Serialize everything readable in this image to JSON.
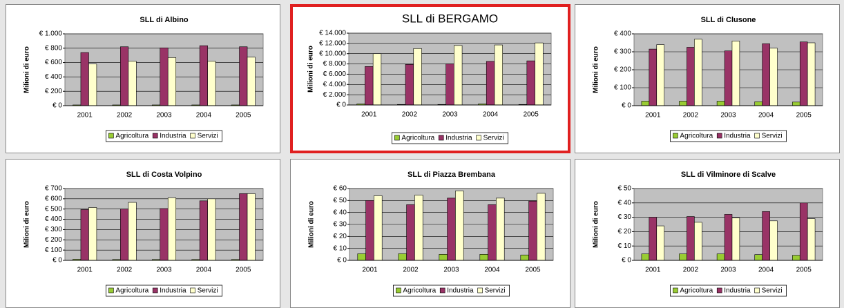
{
  "chart_data": [
    {
      "type": "bar",
      "title": "SLL di Albino",
      "y_label": "Milioni di euro",
      "categories": [
        "2001",
        "2002",
        "2003",
        "2004",
        "2005"
      ],
      "series": [
        {
          "name": "Agricoltura",
          "color": "#99cc33",
          "values": [
            10,
            10,
            10,
            10,
            10
          ]
        },
        {
          "name": "Industria",
          "color": "#993366",
          "values": [
            740,
            820,
            805,
            835,
            820
          ]
        },
        {
          "name": "Servizi",
          "color": "#ffffcc",
          "values": [
            580,
            620,
            670,
            620,
            675
          ]
        }
      ],
      "ylim": [
        0,
        1000
      ],
      "yticks": [
        {
          "value": 0,
          "label": "€ 0"
        },
        {
          "value": 200,
          "label": "€ 200"
        },
        {
          "value": 400,
          "label": "€ 400"
        },
        {
          "value": 600,
          "label": "€ 600"
        },
        {
          "value": 800,
          "label": "€ 800"
        },
        {
          "value": 1000,
          "label": "€ 1.000"
        }
      ],
      "grid": true
    },
    {
      "type": "bar",
      "title": "SLL di BERGAMO",
      "title_color": "#e02020",
      "border_color": "#e02020",
      "y_label": "Milioni di euro",
      "categories": [
        "2001",
        "2002",
        "2003",
        "2004",
        "2005"
      ],
      "series": [
        {
          "name": "Agricoltura",
          "color": "#99cc33",
          "values": [
            200,
            100,
            100,
            200,
            100
          ]
        },
        {
          "name": "Industria",
          "color": "#993366",
          "values": [
            7500,
            7900,
            8000,
            8500,
            8600
          ]
        },
        {
          "name": "Servizi",
          "color": "#ffffcc",
          "values": [
            10000,
            11000,
            11600,
            11700,
            12100
          ]
        }
      ],
      "ylim": [
        0,
        14000
      ],
      "yticks": [
        {
          "value": 0,
          "label": "€ 0"
        },
        {
          "value": 2000,
          "label": "€ 2.000"
        },
        {
          "value": 4000,
          "label": "€ 4.000"
        },
        {
          "value": 6000,
          "label": "€ 6.000"
        },
        {
          "value": 8000,
          "label": "€ 8.000"
        },
        {
          "value": 10000,
          "label": "€ 10.000"
        },
        {
          "value": 12000,
          "label": "€ 12.000"
        },
        {
          "value": 14000,
          "label": "€ 14.000"
        }
      ],
      "grid": true
    },
    {
      "type": "bar",
      "title": "SLL di Clusone",
      "y_label": "Milioni di euro",
      "categories": [
        "2001",
        "2002",
        "2003",
        "2004",
        "2005"
      ],
      "series": [
        {
          "name": "Agricoltura",
          "color": "#99cc33",
          "values": [
            25,
            25,
            25,
            22,
            20
          ]
        },
        {
          "name": "Industria",
          "color": "#993366",
          "values": [
            315,
            325,
            305,
            345,
            355
          ]
        },
        {
          "name": "Servizi",
          "color": "#ffffcc",
          "values": [
            340,
            370,
            360,
            320,
            350
          ]
        }
      ],
      "ylim": [
        0,
        400
      ],
      "yticks": [
        {
          "value": 0,
          "label": "€ 0"
        },
        {
          "value": 100,
          "label": "€ 100"
        },
        {
          "value": 200,
          "label": "€ 200"
        },
        {
          "value": 300,
          "label": "€ 300"
        },
        {
          "value": 400,
          "label": "€ 400"
        }
      ],
      "grid": true
    },
    {
      "type": "bar",
      "title": "SLL di Costa Volpino",
      "y_label": "Milioni di euro",
      "categories": [
        "2001",
        "2002",
        "2003",
        "2004",
        "2005"
      ],
      "series": [
        {
          "name": "Agricoltura",
          "color": "#99cc33",
          "values": [
            10,
            8,
            8,
            8,
            8
          ]
        },
        {
          "name": "Industria",
          "color": "#993366",
          "values": [
            495,
            500,
            505,
            580,
            650
          ]
        },
        {
          "name": "Servizi",
          "color": "#ffffcc",
          "values": [
            515,
            565,
            610,
            600,
            650
          ]
        }
      ],
      "ylim": [
        0,
        700
      ],
      "yticks": [
        {
          "value": 0,
          "label": "€ 0"
        },
        {
          "value": 100,
          "label": "€ 100"
        },
        {
          "value": 200,
          "label": "€ 200"
        },
        {
          "value": 300,
          "label": "€ 300"
        },
        {
          "value": 400,
          "label": "€ 400"
        },
        {
          "value": 500,
          "label": "€ 500"
        },
        {
          "value": 600,
          "label": "€ 600"
        },
        {
          "value": 700,
          "label": "€ 700"
        }
      ],
      "grid": true
    },
    {
      "type": "bar",
      "title": "SLL di Piazza Brembana",
      "y_label": "Milioni di euro",
      "categories": [
        "2001",
        "2002",
        "2003",
        "2004",
        "2005"
      ],
      "series": [
        {
          "name": "Agricoltura",
          "color": "#99cc33",
          "values": [
            5.5,
            5.5,
            5,
            5,
            4.5
          ]
        },
        {
          "name": "Industria",
          "color": "#993366",
          "values": [
            50,
            46.5,
            52,
            46.5,
            49.5
          ]
        },
        {
          "name": "Servizi",
          "color": "#ffffcc",
          "values": [
            54,
            54.5,
            58,
            52,
            56
          ]
        }
      ],
      "ylim": [
        0,
        60
      ],
      "yticks": [
        {
          "value": 0,
          "label": "€ 0"
        },
        {
          "value": 10,
          "label": "€ 10"
        },
        {
          "value": 20,
          "label": "€ 20"
        },
        {
          "value": 30,
          "label": "€ 30"
        },
        {
          "value": 40,
          "label": "€ 40"
        },
        {
          "value": 50,
          "label": "€ 50"
        },
        {
          "value": 60,
          "label": "€ 60"
        }
      ],
      "grid": true
    },
    {
      "type": "bar",
      "title": "SLL di Vilminore di Scalve",
      "y_label": "Milioni di euro",
      "categories": [
        "2001",
        "2002",
        "2003",
        "2004",
        "2005"
      ],
      "series": [
        {
          "name": "Agricoltura",
          "color": "#99cc33",
          "values": [
            4.5,
            4.5,
            4.5,
            4,
            3.5
          ]
        },
        {
          "name": "Industria",
          "color": "#993366",
          "values": [
            30,
            30.5,
            32,
            34,
            40
          ]
        },
        {
          "name": "Servizi",
          "color": "#ffffcc",
          "values": [
            24,
            26.5,
            29.5,
            27.5,
            29
          ]
        }
      ],
      "ylim": [
        0,
        50
      ],
      "yticks": [
        {
          "value": 0,
          "label": "€ 0"
        },
        {
          "value": 10,
          "label": "€ 10"
        },
        {
          "value": 20,
          "label": "€ 20"
        },
        {
          "value": 30,
          "label": "€ 30"
        },
        {
          "value": 40,
          "label": "€ 40"
        },
        {
          "value": 50,
          "label": "€ 50"
        }
      ],
      "grid": true
    }
  ]
}
